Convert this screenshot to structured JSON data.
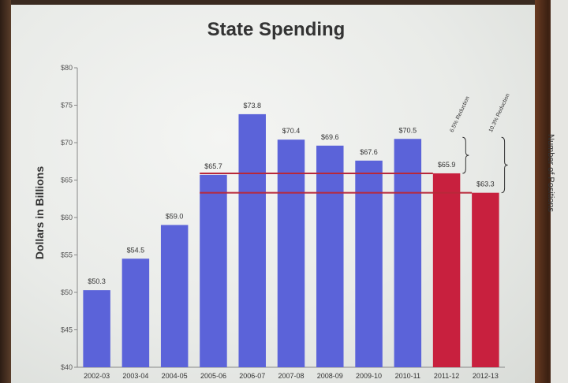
{
  "chart_data": {
    "type": "bar",
    "title": "State Spending",
    "ylabel": "Dollars in Billions",
    "xlabel": "",
    "ylim": [
      40,
      80
    ],
    "y_ticks": [
      "$40",
      "$45",
      "$50",
      "$55",
      "$60",
      "$65",
      "$70",
      "$75",
      "$80"
    ],
    "categories": [
      "2002-03",
      "2003-04",
      "2004-05",
      "2005-06",
      "2006-07",
      "2007-08",
      "2008-09",
      "2009-10",
      "2010-11",
      "2011-12",
      "2012-13"
    ],
    "values": [
      50.3,
      54.5,
      59.0,
      65.7,
      73.8,
      70.4,
      69.6,
      67.6,
      70.5,
      65.9,
      63.3
    ],
    "value_labels": [
      "$50.3",
      "$54.5",
      "$59.0",
      "$65.7",
      "$73.8",
      "$70.4",
      "$69.6",
      "$67.6",
      "$70.5",
      "$65.9",
      "$63.3"
    ],
    "bar_colors": [
      "#5b63d9",
      "#5b63d9",
      "#5b63d9",
      "#5b63d9",
      "#5b63d9",
      "#5b63d9",
      "#5b63d9",
      "#5b63d9",
      "#5b63d9",
      "#c8203e",
      "#c8203e"
    ],
    "reference_lines": [
      65.9,
      63.3
    ],
    "reference_line_color": "#b8283a",
    "annotations": [
      "6.5% Reduction",
      "10.3% Reduction"
    ],
    "grid": false
  },
  "right_panel_text": "Number of Positions"
}
